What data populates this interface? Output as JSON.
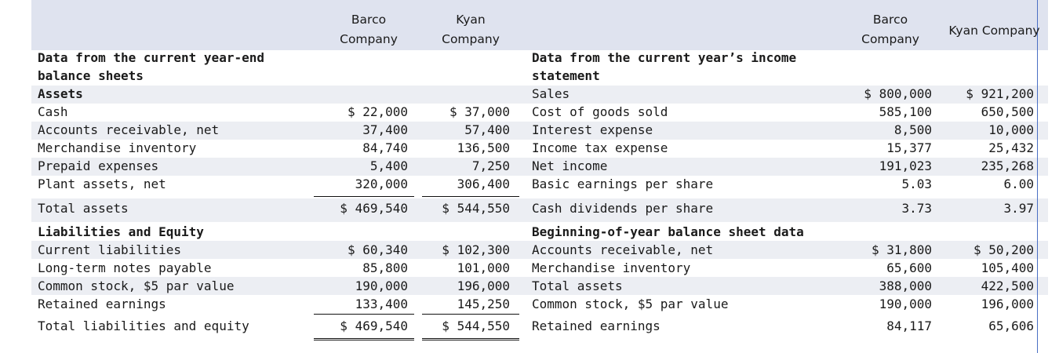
{
  "headers": {
    "left_barco": "Barco\nCompany",
    "left_kyan": "Kyan\nCompany",
    "right_barco": "Barco\nCompany",
    "right_kyan": "Kyan Company"
  },
  "left": {
    "section_title_1": "Data from the current year-end",
    "section_title_2": "balance sheets",
    "rows": [
      {
        "label": "Assets",
        "barco": "",
        "kyan": ""
      },
      {
        "label": "Cash",
        "barco": "$ 22,000",
        "kyan": "$ 37,000"
      },
      {
        "label": "Accounts receivable, net",
        "barco": "37,400",
        "kyan": "57,400"
      },
      {
        "label": "Merchandise inventory",
        "barco": "84,740",
        "kyan": "136,500"
      },
      {
        "label": "Prepaid expenses",
        "barco": "5,400",
        "kyan": "7,250"
      },
      {
        "label": "Plant assets, net",
        "barco": "320,000",
        "kyan": "306,400"
      },
      {
        "label": "Total assets",
        "barco": "$ 469,540",
        "kyan": "$ 544,550"
      },
      {
        "label": "Liabilities and Equity",
        "barco": "",
        "kyan": ""
      },
      {
        "label": "Current liabilities",
        "barco": "$ 60,340",
        "kyan": "$ 102,300"
      },
      {
        "label": "Long-term notes payable",
        "barco": "85,800",
        "kyan": "101,000"
      },
      {
        "label": "Common stock, $5 par value",
        "barco": "190,000",
        "kyan": "196,000"
      },
      {
        "label": "Retained earnings",
        "barco": "133,400",
        "kyan": "145,250"
      },
      {
        "label": "Total liabilities and equity",
        "barco": "$ 469,540",
        "kyan": "$ 544,550"
      }
    ]
  },
  "right": {
    "section_title_1": "Data from the current year’s income",
    "section_title_2": "statement",
    "rows": [
      {
        "label": "Sales",
        "barco": "$ 800,000",
        "kyan": "$ 921,200"
      },
      {
        "label": "Cost of goods sold",
        "barco": "585,100",
        "kyan": "650,500"
      },
      {
        "label": "Interest expense",
        "barco": "8,500",
        "kyan": "10,000"
      },
      {
        "label": "Income tax expense",
        "barco": "15,377",
        "kyan": "25,432"
      },
      {
        "label": "Net income",
        "barco": "191,023",
        "kyan": "235,268"
      },
      {
        "label": "Basic earnings per share",
        "barco": "5.03",
        "kyan": "6.00"
      },
      {
        "label": "Cash dividends per share",
        "barco": "3.73",
        "kyan": "3.97"
      },
      {
        "label": "Beginning-of-year balance sheet data",
        "barco": "",
        "kyan": ""
      },
      {
        "label": "Accounts receivable, net",
        "barco": "$ 31,800",
        "kyan": "$ 50,200"
      },
      {
        "label": "Merchandise inventory",
        "barco": "65,600",
        "kyan": "105,400"
      },
      {
        "label": "Total assets",
        "barco": "388,000",
        "kyan": "422,500"
      },
      {
        "label": "Common stock, $5 par value",
        "barco": "190,000",
        "kyan": "196,000"
      },
      {
        "label": "Retained earnings",
        "barco": "84,117",
        "kyan": "65,606"
      }
    ]
  }
}
